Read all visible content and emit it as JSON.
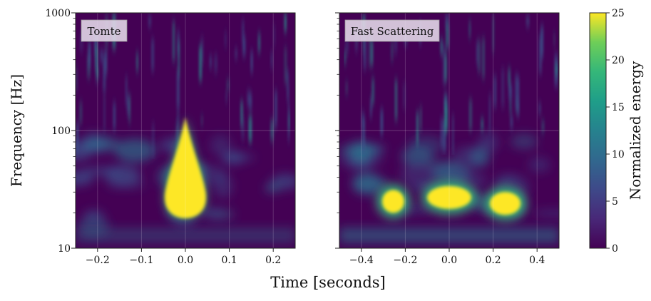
{
  "chart_data": {
    "type": "heatmap",
    "ylabel": "Frequency [Hz]",
    "xlabel": "Time [seconds]",
    "yscale": "log",
    "ylim": [
      10,
      1000
    ],
    "yticks": [
      {
        "value": 10,
        "label": "10"
      },
      {
        "value": 100,
        "label": "100"
      },
      {
        "value": 1000,
        "label": "1000"
      }
    ],
    "grid": true,
    "colormap": "viridis",
    "colorbar": {
      "label": "Normalized energy",
      "range": [
        0,
        25
      ],
      "ticks": [
        {
          "value": 0,
          "label": "0"
        },
        {
          "value": 5,
          "label": "5"
        },
        {
          "value": 10,
          "label": "10"
        },
        {
          "value": 15,
          "label": "15"
        },
        {
          "value": 20,
          "label": "20"
        },
        {
          "value": 25,
          "label": "25"
        }
      ]
    },
    "panels": [
      {
        "name": "Tomte",
        "xlim": [
          -0.25,
          0.25
        ],
        "xticks": [
          {
            "value": -0.2,
            "label": "−0.2"
          },
          {
            "value": -0.1,
            "label": "−0.1"
          },
          {
            "value": 0.0,
            "label": "0.0"
          },
          {
            "value": 0.1,
            "label": "0.1"
          },
          {
            "value": 0.2,
            "label": "0.2"
          }
        ],
        "blobs": [
          {
            "t": 0.0,
            "f_low": 18,
            "f_high": 130,
            "f_peak": 30,
            "half_width_s": 0.05,
            "energy": 25
          }
        ]
      },
      {
        "name": "Fast Scattering",
        "xlim": [
          -0.5,
          0.5
        ],
        "xticks": [
          {
            "value": -0.4,
            "label": "−0.4"
          },
          {
            "value": -0.2,
            "label": "−0.2"
          },
          {
            "value": 0.0,
            "label": "0.0"
          },
          {
            "value": 0.2,
            "label": "0.2"
          },
          {
            "value": 0.4,
            "label": "0.4"
          }
        ],
        "blobs": [
          {
            "t": -0.255,
            "f_center": 25,
            "half_width_s": 0.05,
            "energy": 25
          },
          {
            "t": 0.0,
            "f_center": 27,
            "half_width_s": 0.1,
            "energy": 25
          },
          {
            "t": 0.255,
            "f_center": 24,
            "half_width_s": 0.07,
            "energy": 25
          }
        ]
      }
    ]
  },
  "colors": {
    "background": "#440154",
    "viridis_low": "#440154",
    "viridis_mid": "#21918c",
    "viridis_high": "#fde725"
  }
}
